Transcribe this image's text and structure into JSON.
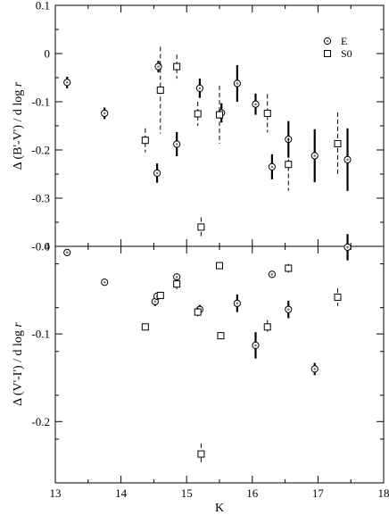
{
  "chart_data": [
    {
      "type": "scatter",
      "ylabel": "Δ (B'-V') / d log r",
      "ylim": [
        -0.4,
        0.1
      ],
      "yticks": [
        0.1,
        0,
        -0.1,
        -0.2,
        -0.3,
        -0.4
      ],
      "ytick_labels": [
        "0.1",
        "0",
        "-0.1",
        "-0.2",
        "-0.3",
        "-0.4"
      ],
      "legend": {
        "position": "top-right",
        "entries": [
          "E",
          "S0"
        ]
      },
      "series": [
        {
          "name": "E",
          "marker": "circle",
          "points": [
            {
              "x": 13.18,
              "y": -0.06,
              "err": 0.012
            },
            {
              "x": 13.75,
              "y": -0.124,
              "err": 0.012
            },
            {
              "x": 14.55,
              "y": -0.248,
              "err": 0.02
            },
            {
              "x": 14.57,
              "y": -0.027,
              "err": 0.012
            },
            {
              "x": 14.85,
              "y": -0.188,
              "err": 0.025
            },
            {
              "x": 15.2,
              "y": -0.072,
              "err": 0.02
            },
            {
              "x": 15.53,
              "y": -0.123,
              "err": 0.02
            },
            {
              "x": 15.77,
              "y": -0.062,
              "err": 0.038
            },
            {
              "x": 16.05,
              "y": -0.105,
              "err": 0.022
            },
            {
              "x": 16.3,
              "y": -0.235,
              "err": 0.026
            },
            {
              "x": 16.55,
              "y": -0.178,
              "err": 0.038
            },
            {
              "x": 16.95,
              "y": -0.212,
              "err": 0.055
            },
            {
              "x": 17.45,
              "y": -0.22,
              "err": 0.065
            }
          ]
        },
        {
          "name": "S0",
          "marker": "square",
          "points": [
            {
              "x": 14.37,
              "y": -0.18,
              "err": 0.025
            },
            {
              "x": 14.6,
              "y": -0.076,
              "err": 0.09
            },
            {
              "x": 14.85,
              "y": -0.027,
              "err": 0.025
            },
            {
              "x": 15.17,
              "y": -0.125,
              "err": 0.025
            },
            {
              "x": 15.22,
              "y": -0.36,
              "err": 0.02
            },
            {
              "x": 15.5,
              "y": -0.127,
              "err": 0.06
            },
            {
              "x": 16.23,
              "y": -0.124,
              "err": 0.04
            },
            {
              "x": 16.55,
              "y": -0.23,
              "err": 0.055
            },
            {
              "x": 17.3,
              "y": -0.187,
              "err": 0.065
            }
          ]
        }
      ]
    },
    {
      "type": "scatter",
      "xlabel": "K",
      "ylabel": "Δ (V'-I') / d log r",
      "xlim": [
        13,
        18
      ],
      "ylim": [
        -0.27,
        0.0
      ],
      "xticks": [
        13,
        14,
        15,
        16,
        17,
        18
      ],
      "xtick_labels": [
        "13",
        "14",
        "15",
        "16",
        "17",
        "18"
      ],
      "yticks": [
        0,
        -0.1,
        -0.2
      ],
      "ytick_labels": [
        "0",
        "-0.1",
        "-0.2"
      ],
      "series": [
        {
          "name": "E",
          "marker": "circle",
          "points": [
            {
              "x": 13.18,
              "y": -0.007,
              "err": 0.003
            },
            {
              "x": 13.75,
              "y": -0.041,
              "err": 0.003
            },
            {
              "x": 14.52,
              "y": -0.063,
              "err": 0.005
            },
            {
              "x": 14.55,
              "y": -0.057,
              "err": 0.004
            },
            {
              "x": 14.85,
              "y": -0.035,
              "err": 0.004
            },
            {
              "x": 15.2,
              "y": -0.072,
              "err": 0.005
            },
            {
              "x": 15.77,
              "y": -0.065,
              "err": 0.01
            },
            {
              "x": 16.05,
              "y": -0.113,
              "err": 0.015
            },
            {
              "x": 16.3,
              "y": -0.032,
              "err": 0.004
            },
            {
              "x": 16.55,
              "y": -0.072,
              "err": 0.01
            },
            {
              "x": 16.95,
              "y": -0.14,
              "err": 0.007
            },
            {
              "x": 17.45,
              "y": -0.001,
              "err": 0.015
            }
          ]
        },
        {
          "name": "S0",
          "marker": "square",
          "points": [
            {
              "x": 14.37,
              "y": -0.092,
              "err": 0.004
            },
            {
              "x": 14.6,
              "y": -0.056,
              "err": 0.004
            },
            {
              "x": 14.85,
              "y": -0.043,
              "err": 0.006
            },
            {
              "x": 15.17,
              "y": -0.075,
              "err": 0.005
            },
            {
              "x": 15.22,
              "y": -0.237,
              "err": 0.012
            },
            {
              "x": 15.5,
              "y": -0.022,
              "err": 0.004
            },
            {
              "x": 15.52,
              "y": -0.102,
              "err": 0.004
            },
            {
              "x": 16.23,
              "y": -0.092,
              "err": 0.008
            },
            {
              "x": 16.55,
              "y": -0.025,
              "err": 0.005
            },
            {
              "x": 17.3,
              "y": -0.058,
              "err": 0.01
            }
          ]
        }
      ]
    }
  ]
}
